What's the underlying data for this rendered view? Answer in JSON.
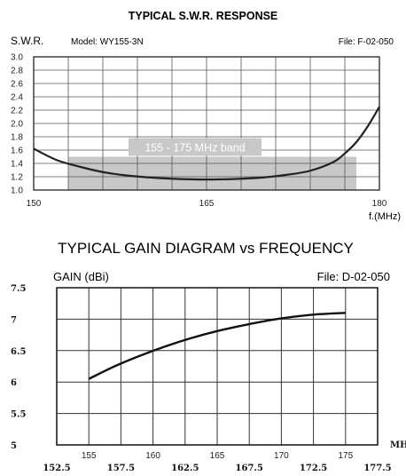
{
  "chart_data": [
    {
      "type": "line",
      "title": "TYPICAL S.W.R. RESPONSE",
      "ylabel": "S.W.R.",
      "model_label": "Model:  WY155-3N",
      "file_label": "File:  F-02-050",
      "xlabel": "f.(MHz)",
      "band_label": "155 - 175 MHz band",
      "band_range": [
        153,
        178
      ],
      "xlim": [
        150,
        180
      ],
      "ylim": [
        1.0,
        3.0
      ],
      "x_ticks": [
        150,
        165,
        180
      ],
      "x_tick_labels": [
        "150",
        "165",
        "180"
      ],
      "y_ticks": [
        1.0,
        1.2,
        1.4,
        1.6,
        1.8,
        2.0,
        2.2,
        2.4,
        2.6,
        2.8,
        3.0
      ],
      "y_tick_labels": [
        "1.0",
        "1.2",
        "1.4",
        "1.6",
        "1.8",
        "2.0",
        "2.2",
        "2.4",
        "2.6",
        "2.8",
        "3.0"
      ],
      "x_grid": [
        150,
        153,
        156,
        159,
        162,
        165,
        168,
        171,
        174,
        177,
        180
      ],
      "series": [
        {
          "x": [
            150,
            152,
            154,
            156,
            158,
            160,
            162,
            164,
            166,
            168,
            170,
            172,
            174,
            176,
            177,
            178,
            179,
            180
          ],
          "y": [
            1.62,
            1.45,
            1.35,
            1.27,
            1.22,
            1.19,
            1.17,
            1.16,
            1.16,
            1.17,
            1.19,
            1.23,
            1.29,
            1.42,
            1.55,
            1.72,
            1.96,
            2.25
          ]
        }
      ],
      "grid": true
    },
    {
      "type": "line",
      "title": "TYPICAL GAIN DIAGRAM vs FREQUENCY",
      "ylabel": "GAIN (dBi)",
      "file_label": "File:  D-02-050",
      "xlabel": "MHz",
      "xlim": [
        152.5,
        177.5
      ],
      "ylim": [
        5,
        7.5
      ],
      "x_ticks_top": [
        155,
        160,
        165,
        170,
        175
      ],
      "x_ticks_top_labels": [
        "155",
        "160",
        "165",
        "170",
        "175"
      ],
      "x_ticks_bottom": [
        152.5,
        157.5,
        162.5,
        167.5,
        172.5,
        177.5
      ],
      "x_ticks_bottom_labels": [
        "152.5",
        "157.5",
        "162.5",
        "167.5",
        "172.5",
        "177.5"
      ],
      "y_ticks": [
        5,
        5.5,
        6,
        6.5,
        7,
        7.5
      ],
      "y_tick_labels": [
        "5",
        "5.5",
        "6",
        "6.5",
        "7",
        "7.5"
      ],
      "series": [
        {
          "x": [
            155,
            157,
            159,
            161,
            163,
            165,
            167,
            169,
            171,
            173,
            175
          ],
          "y": [
            6.05,
            6.25,
            6.42,
            6.57,
            6.7,
            6.81,
            6.9,
            6.98,
            7.04,
            7.08,
            7.1
          ]
        }
      ],
      "grid": true
    }
  ]
}
